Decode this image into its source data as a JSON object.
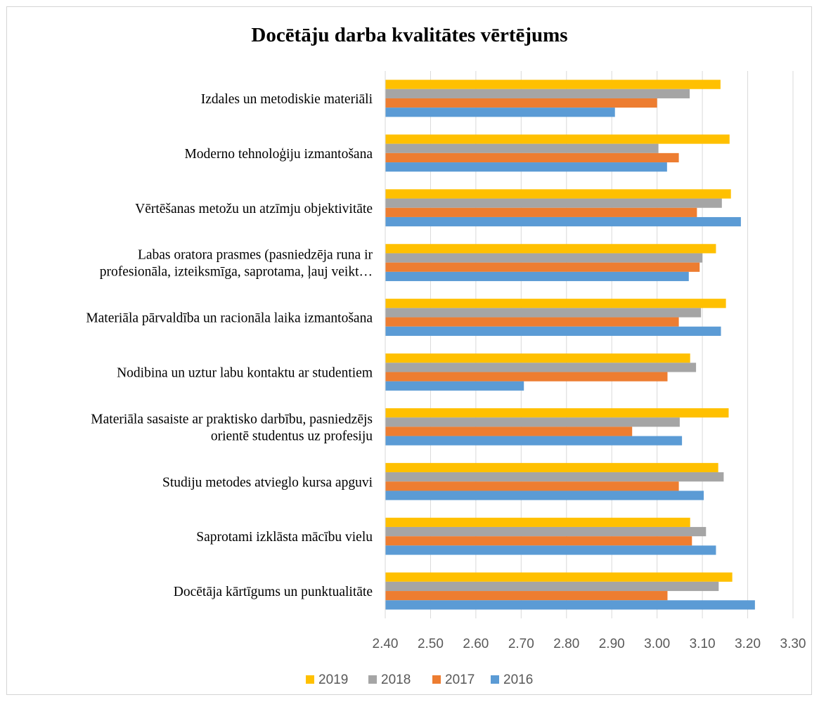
{
  "chart_data": {
    "type": "bar",
    "orientation": "horizontal",
    "title": "Docētāju darba kvalitātes vērtējums",
    "categories": [
      [
        "Izdales un metodiskie materiāli"
      ],
      [
        "Moderno tehnoloģiju izmantošana"
      ],
      [
        "Vērtēšanas metožu un atzīmju objektivitāte"
      ],
      [
        "Labas oratora prasmes (pasniedzēja runa ir",
        "profesionāla, izteiksmīga, saprotama, ļauj veikt…"
      ],
      [
        "Materiāla pārvaldība un racionāla laika izmantošana"
      ],
      [
        "Nodibina un uztur labu kontaktu ar studentiem"
      ],
      [
        "Materiāla sasaiste ar praktisko darbību, pasniedzējs",
        "orientē studentus uz profesiju"
      ],
      [
        "Studiju metodes atvieglo kursa apguvi"
      ],
      [
        "Saprotami izklāsta mācību vielu"
      ],
      [
        "Docētāja kārtīgums un punktualitāte"
      ]
    ],
    "series": [
      {
        "name": "2019",
        "color": "#FFC000",
        "values": [
          3.14,
          3.16,
          3.163,
          3.13,
          3.152,
          3.073,
          3.158,
          3.135,
          3.073,
          3.166
        ]
      },
      {
        "name": "2018",
        "color": "#A5A5A5",
        "values": [
          3.072,
          3.003,
          3.143,
          3.1,
          3.097,
          3.086,
          3.05,
          3.147,
          3.108,
          3.136
        ]
      },
      {
        "name": "2017",
        "color": "#ED7D31",
        "values": [
          3.0,
          3.048,
          3.088,
          3.094,
          3.048,
          3.023,
          2.945,
          3.048,
          3.077,
          3.023
        ]
      },
      {
        "name": "2016",
        "color": "#5B9BD5",
        "values": [
          2.907,
          3.022,
          3.185,
          3.07,
          3.141,
          2.706,
          3.055,
          3.103,
          3.13,
          3.216
        ]
      }
    ],
    "xlim": [
      2.4,
      3.3
    ],
    "xticks": [
      "2.40",
      "2.50",
      "2.60",
      "2.70",
      "2.80",
      "2.90",
      "3.00",
      "3.10",
      "3.20",
      "3.30"
    ],
    "grid": true,
    "legend_position": "bottom"
  }
}
